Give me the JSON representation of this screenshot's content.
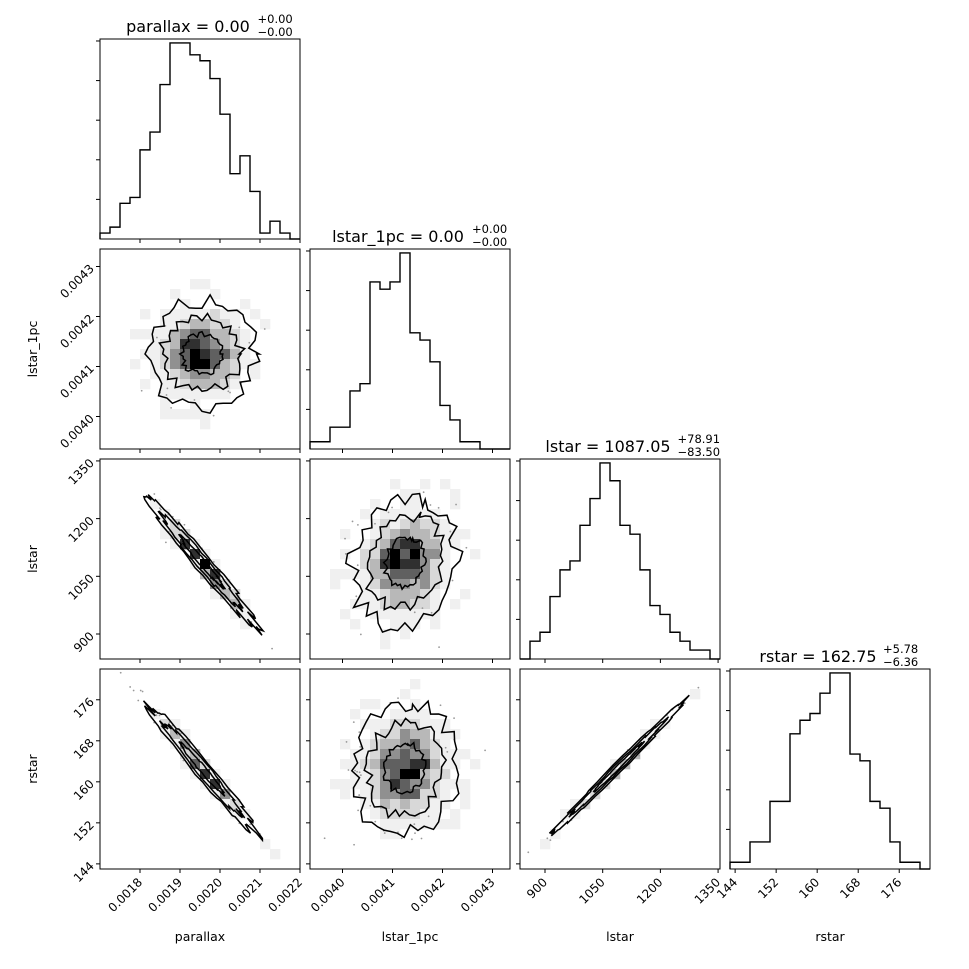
{
  "chart_data": {
    "type": "corner",
    "parameters": [
      "parallax",
      "lstar_1pc",
      "lstar",
      "rstar"
    ],
    "titles": [
      {
        "param": "parallax",
        "label": "parallax = ",
        "median": "0.00",
        "upper": "+0.00",
        "lower": "−0.00"
      },
      {
        "param": "lstar_1pc",
        "label": "lstar_1pc = ",
        "median": "0.00",
        "upper": "+0.00",
        "lower": "−0.00"
      },
      {
        "param": "lstar",
        "label": "lstar = ",
        "median": "1087.05",
        "upper": "+78.91",
        "lower": "−83.50"
      },
      {
        "param": "rstar",
        "label": "rstar = ",
        "median": "162.75",
        "upper": "+5.78",
        "lower": "−6.36"
      }
    ],
    "axes": {
      "parallax": {
        "range": [
          0.0017,
          0.0022
        ],
        "ticks": [
          0.0018,
          0.0019,
          0.002,
          0.0021,
          0.0022
        ],
        "tick_labels": [
          "0.0018",
          "0.0019",
          "0.0020",
          "0.0021",
          "0.0022"
        ]
      },
      "lstar_1pc": {
        "range": [
          0.003935,
          0.004335
        ],
        "ticks": [
          0.004,
          0.0041,
          0.0042,
          0.0043
        ],
        "tick_labels": [
          "0.0040",
          "0.0041",
          "0.0042",
          "0.0043"
        ]
      },
      "lstar": {
        "range": [
          835,
          1355
        ],
        "ticks": [
          900,
          1050,
          1200,
          1350
        ],
        "tick_labels": [
          "900",
          "1050",
          "1200",
          "1350"
        ]
      },
      "rstar": {
        "range": [
          143,
          182
        ],
        "ticks": [
          144,
          152,
          160,
          168,
          176
        ],
        "tick_labels": [
          "144",
          "152",
          "160",
          "168",
          "176"
        ]
      }
    },
    "x_labels": [
      "parallax",
      "lstar_1pc",
      "lstar",
      "rstar"
    ],
    "y_labels": [
      "",
      "lstar_1pc",
      "lstar",
      "rstar"
    ],
    "histograms": [
      {
        "param": "parallax",
        "counts": [
          1,
          2,
          6,
          7,
          15,
          18,
          26,
          33,
          33,
          31,
          30,
          27,
          21,
          11,
          14,
          8,
          1,
          3,
          1,
          0
        ]
      },
      {
        "param": "lstar_1pc",
        "counts": [
          1,
          1,
          3,
          3,
          8,
          9,
          23,
          22,
          23,
          27,
          16,
          15,
          12,
          6,
          4,
          1,
          1,
          0,
          0,
          0
        ]
      },
      {
        "param": "lstar",
        "counts": [
          0,
          2,
          3,
          7,
          10,
          11,
          15,
          18,
          22,
          20,
          15,
          14,
          10,
          6,
          5,
          3,
          2,
          1,
          1,
          0
        ]
      },
      {
        "param": "rstar",
        "counts": [
          1,
          1,
          4,
          4,
          10,
          10,
          20,
          22,
          23,
          26,
          29,
          29,
          17,
          16,
          10,
          9,
          4,
          1,
          1,
          0
        ]
      }
    ],
    "pairs": [
      {
        "x": "parallax",
        "y": "lstar_1pc",
        "rho": 0.0,
        "mean": [
          0.001955,
          0.004125
        ],
        "sd": [
          6.5e-05,
          5e-05
        ]
      },
      {
        "x": "parallax",
        "y": "lstar",
        "rho": -0.98,
        "mean": [
          0.001955,
          1087
        ],
        "sd": [
          6.5e-05,
          80
        ]
      },
      {
        "x": "lstar_1pc",
        "y": "lstar",
        "rho": 0.15,
        "mean": [
          0.004125,
          1087
        ],
        "sd": [
          5e-05,
          80
        ]
      },
      {
        "x": "parallax",
        "y": "rstar",
        "rho": -0.98,
        "mean": [
          0.001955,
          162.6
        ],
        "sd": [
          6.5e-05,
          6
        ]
      },
      {
        "x": "lstar_1pc",
        "y": "rstar",
        "rho": 0.05,
        "mean": [
          0.004125,
          162.6
        ],
        "sd": [
          5e-05,
          6
        ]
      },
      {
        "x": "lstar",
        "y": "rstar",
        "rho": 0.995,
        "mean": [
          1087,
          162.6
        ],
        "sd": [
          80,
          6
        ]
      }
    ]
  }
}
